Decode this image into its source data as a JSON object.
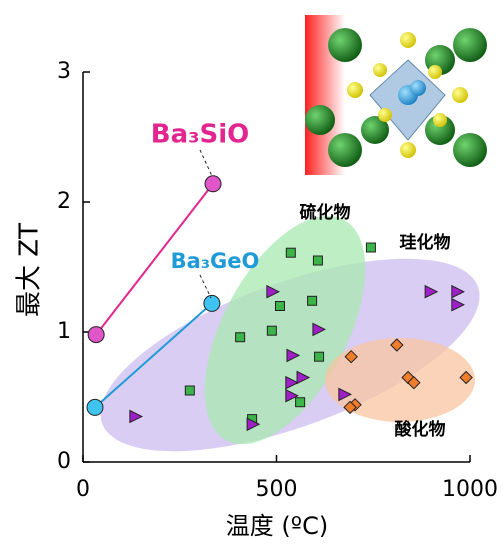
{
  "chart_data": {
    "type": "scatter",
    "xlabel": "温度 (ºC)",
    "ylabel": "最大 ZT",
    "xlim": [
      0,
      1000
    ],
    "xticks": [
      0,
      500,
      1000
    ],
    "ylim": [
      0,
      3
    ],
    "yticks": [
      0,
      1,
      2,
      3
    ],
    "series": [
      {
        "name": "Ba₃SiO",
        "color": "#e3268f",
        "marker": "circle",
        "line": true,
        "x": [
          34,
          336
        ],
        "values": [
          0.98,
          2.14
        ]
      },
      {
        "name": "Ba₃GeO",
        "color": "#1e9bd7",
        "marker": "circle",
        "line": true,
        "x": [
          31,
          333
        ],
        "values": [
          0.42,
          1.22
        ]
      },
      {
        "name": "硫化物",
        "color": "#3cb44a",
        "marker": "square",
        "line": false,
        "x": [
          537,
          607,
          744,
          509,
          592,
          488,
          406,
          610,
          276,
          437,
          561
        ],
        "values": [
          1.61,
          1.55,
          1.65,
          1.2,
          1.24,
          1.01,
          0.96,
          0.81,
          0.55,
          0.33,
          0.46
        ]
      },
      {
        "name": "珪化物",
        "color": "#a020c8",
        "marker": "triangle",
        "line": false,
        "x": [
          488,
          607,
          540,
          566,
          537,
          537,
          134,
          437,
          674,
          897,
          966,
          966
        ],
        "values": [
          1.31,
          1.02,
          0.82,
          0.65,
          0.61,
          0.51,
          0.35,
          0.29,
          0.52,
          1.31,
          1.31,
          1.21
        ]
      },
      {
        "name": "酸化物",
        "color": "#f07d2c",
        "marker": "diamond",
        "line": false,
        "x": [
          693,
          811,
          840,
          855,
          990,
          703,
          690
        ],
        "values": [
          0.81,
          0.9,
          0.65,
          0.61,
          0.65,
          0.44,
          0.42
        ]
      }
    ]
  }
}
